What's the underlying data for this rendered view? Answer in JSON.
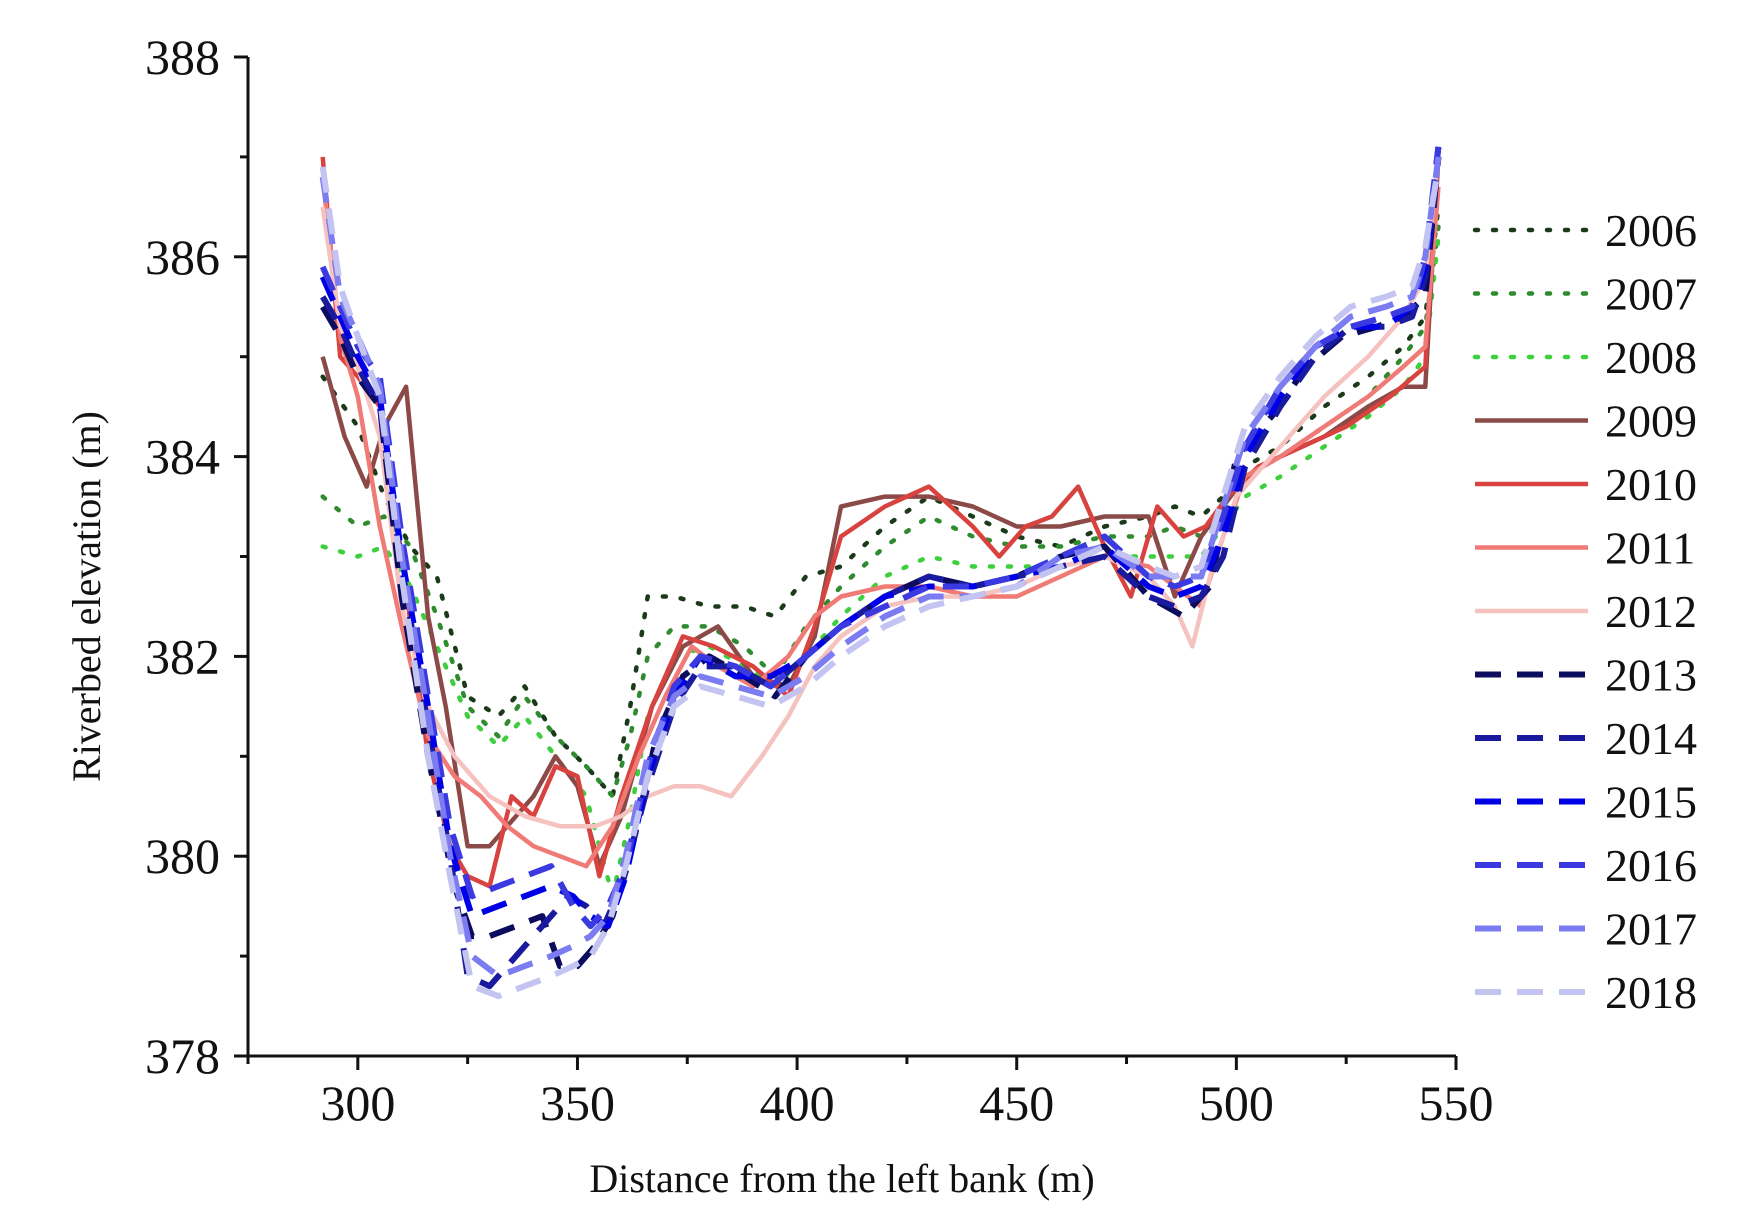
{
  "chart_data": {
    "type": "line",
    "xlabel": "Distance from the left bank (m)",
    "ylabel": "Riverbed elevation (m)",
    "xlim": [
      275,
      550
    ],
    "ylim": [
      378,
      388
    ],
    "xticks": [
      300,
      350,
      400,
      450,
      500,
      550
    ],
    "yticks": [
      378,
      380,
      382,
      384,
      386,
      388
    ],
    "grid": false,
    "legend_position": "right",
    "series": [
      {
        "name": "2006",
        "color": "#1a3a1a",
        "dash": "dot",
        "x": [
          292,
          300,
          306,
          312,
          318,
          325,
          332,
          338,
          345,
          352,
          358,
          362,
          366,
          372,
          380,
          388,
          395,
          402,
          410,
          420,
          430,
          440,
          450,
          460,
          470,
          480,
          486,
          492,
          497,
          502,
          510,
          520,
          530,
          538,
          543,
          546
        ],
        "y": [
          384.8,
          384.3,
          383.6,
          383.1,
          382.8,
          381.6,
          381.4,
          381.7,
          381.2,
          380.9,
          380.6,
          381.5,
          382.6,
          382.6,
          382.5,
          382.5,
          382.4,
          382.8,
          382.9,
          383.3,
          383.6,
          383.4,
          383.2,
          383.1,
          383.3,
          383.4,
          383.5,
          383.4,
          383.6,
          383.9,
          384.1,
          384.5,
          384.8,
          385.1,
          385.4,
          386.5
        ]
      },
      {
        "name": "2007",
        "color": "#2e8b2e",
        "dash": "dot",
        "x": [
          292,
          300,
          306,
          312,
          318,
          325,
          332,
          338,
          345,
          352,
          358,
          362,
          366,
          372,
          380,
          388,
          395,
          402,
          410,
          420,
          430,
          440,
          450,
          460,
          470,
          480,
          486,
          492,
          497,
          502,
          510,
          520,
          530,
          538,
          543,
          546
        ],
        "y": [
          383.6,
          383.3,
          383.4,
          383.1,
          382.4,
          381.5,
          381.2,
          381.6,
          381.2,
          380.9,
          380.6,
          381.2,
          382.0,
          382.3,
          382.3,
          382.1,
          381.8,
          382.3,
          382.7,
          383.1,
          383.4,
          383.2,
          383.1,
          383.1,
          383.2,
          383.2,
          383.3,
          383.2,
          383.5,
          383.8,
          384.0,
          384.3,
          384.6,
          385.0,
          385.3,
          386.3
        ]
      },
      {
        "name": "2008",
        "color": "#3ecf3e",
        "dash": "dot",
        "x": [
          292,
          300,
          306,
          312,
          318,
          325,
          332,
          338,
          345,
          352,
          358,
          362,
          366,
          372,
          380,
          388,
          395,
          402,
          410,
          420,
          430,
          440,
          450,
          460,
          470,
          480,
          486,
          492,
          497,
          502,
          510,
          520,
          530,
          538,
          543,
          546
        ],
        "y": [
          383.1,
          383.0,
          383.1,
          382.7,
          382.1,
          381.4,
          381.1,
          381.4,
          381.0,
          380.6,
          379.6,
          380.4,
          381.4,
          382.0,
          382.1,
          381.9,
          381.7,
          382.0,
          382.4,
          382.8,
          383.0,
          382.9,
          382.9,
          382.9,
          383.0,
          383.0,
          383.0,
          383.0,
          383.3,
          383.6,
          383.8,
          384.1,
          384.4,
          384.7,
          385.0,
          386.2
        ]
      },
      {
        "name": "2009",
        "color": "#8b4a47",
        "dash": "solid",
        "x": [
          292,
          297,
          302,
          306,
          311,
          316,
          320,
          325,
          330,
          336,
          340,
          345,
          350,
          355,
          360,
          367,
          374,
          382,
          390,
          398,
          404,
          410,
          420,
          430,
          440,
          450,
          460,
          470,
          480,
          486,
          492,
          497,
          502,
          510,
          520,
          530,
          538,
          543,
          546
        ],
        "y": [
          385.0,
          384.2,
          383.7,
          384.3,
          384.7,
          382.4,
          381.5,
          380.1,
          380.1,
          380.4,
          380.6,
          381.0,
          380.7,
          379.9,
          380.4,
          381.5,
          382.1,
          382.3,
          381.8,
          381.7,
          382.2,
          383.5,
          383.6,
          383.6,
          383.5,
          383.3,
          383.3,
          383.4,
          383.4,
          382.6,
          383.2,
          383.5,
          383.8,
          384.0,
          384.2,
          384.5,
          384.7,
          384.7,
          387.0
        ]
      },
      {
        "name": "2010",
        "color": "#d9433f",
        "dash": "solid",
        "x": [
          292,
          296,
          300,
          305,
          310,
          316,
          321,
          325,
          330,
          335,
          340,
          345,
          350,
          355,
          360,
          367,
          374,
          381,
          390,
          398,
          404,
          410,
          420,
          430,
          440,
          446,
          452,
          458,
          464,
          470,
          476,
          482,
          488,
          493,
          498,
          505,
          515,
          525,
          535,
          543,
          546
        ],
        "y": [
          387.0,
          385.0,
          384.8,
          384.5,
          383.0,
          381.0,
          380.1,
          379.8,
          379.7,
          380.6,
          380.4,
          380.9,
          380.8,
          379.8,
          380.6,
          381.5,
          382.2,
          382.1,
          381.9,
          381.6,
          382.3,
          383.2,
          383.5,
          383.7,
          383.3,
          383.0,
          383.3,
          383.4,
          383.7,
          383.1,
          382.6,
          383.5,
          383.2,
          383.3,
          383.6,
          383.9,
          384.1,
          384.3,
          384.6,
          384.9,
          387.1
        ]
      },
      {
        "name": "2011",
        "color": "#f07a76",
        "dash": "solid",
        "x": [
          292,
          296,
          300,
          305,
          310,
          316,
          322,
          328,
          334,
          340,
          346,
          352,
          358,
          364,
          370,
          376,
          382,
          390,
          398,
          404,
          410,
          420,
          430,
          440,
          450,
          460,
          470,
          480,
          486,
          492,
          497,
          502,
          510,
          520,
          530,
          538,
          543,
          546
        ],
        "y": [
          386.8,
          385.2,
          384.6,
          383.3,
          382.3,
          381.2,
          380.8,
          380.6,
          380.3,
          380.1,
          380.0,
          379.9,
          380.3,
          381.0,
          381.6,
          382.1,
          381.9,
          381.7,
          382.0,
          382.4,
          382.6,
          382.7,
          382.7,
          382.6,
          382.6,
          382.8,
          383.0,
          382.9,
          382.7,
          382.5,
          383.2,
          383.8,
          384.0,
          384.3,
          384.6,
          384.9,
          385.1,
          386.7
        ]
      },
      {
        "name": "2012",
        "color": "#f5c2c0",
        "dash": "solid",
        "x": [
          292,
          296,
          300,
          305,
          310,
          316,
          322,
          330,
          338,
          346,
          354,
          360,
          366,
          372,
          378,
          385,
          392,
          398,
          404,
          410,
          420,
          430,
          440,
          450,
          460,
          470,
          480,
          486,
          490,
          494,
          500,
          510,
          520,
          530,
          538,
          543,
          546
        ],
        "y": [
          386.5,
          385.3,
          384.9,
          384.2,
          382.5,
          381.5,
          381.0,
          380.6,
          380.4,
          380.3,
          380.3,
          380.4,
          380.6,
          380.7,
          380.7,
          380.6,
          381.0,
          381.4,
          381.9,
          382.2,
          382.5,
          382.6,
          382.6,
          382.7,
          382.9,
          383.0,
          382.8,
          382.5,
          382.1,
          382.8,
          383.6,
          384.1,
          384.6,
          385.0,
          385.4,
          385.8,
          387.0
        ]
      },
      {
        "name": "2013",
        "color": "#0c0c5e",
        "dash": "dash",
        "x": [
          292,
          296,
          300,
          305,
          310,
          316,
          322,
          326,
          330,
          336,
          342,
          346,
          350,
          354,
          358,
          362,
          368,
          374,
          380,
          388,
          395,
          402,
          410,
          420,
          430,
          440,
          450,
          460,
          470,
          480,
          488,
          494,
          500,
          508,
          516,
          524,
          532,
          538,
          543,
          546
        ],
        "y": [
          385.5,
          385.2,
          384.8,
          384.5,
          382.6,
          381.0,
          379.7,
          379.2,
          379.2,
          379.3,
          379.4,
          378.9,
          378.9,
          379.1,
          379.4,
          380.0,
          381.2,
          381.8,
          382.0,
          381.8,
          381.6,
          382.0,
          382.3,
          382.6,
          382.8,
          382.7,
          382.8,
          383.0,
          383.1,
          382.6,
          382.4,
          382.7,
          384.0,
          384.4,
          384.9,
          385.2,
          385.3,
          385.4,
          385.6,
          387.0
        ]
      },
      {
        "name": "2014",
        "color": "#1a1a9e",
        "dash": "dash",
        "x": [
          292,
          296,
          300,
          305,
          310,
          316,
          321,
          325,
          330,
          336,
          342,
          348,
          352,
          356,
          360,
          366,
          372,
          378,
          386,
          394,
          402,
          410,
          420,
          430,
          440,
          450,
          460,
          470,
          480,
          486,
          492,
          497,
          502,
          510,
          518,
          526,
          534,
          540,
          543,
          546
        ],
        "y": [
          385.6,
          385.3,
          384.9,
          384.5,
          382.9,
          381.3,
          380.0,
          378.8,
          378.7,
          379.0,
          379.3,
          379.6,
          379.5,
          379.3,
          379.7,
          380.7,
          381.5,
          381.9,
          381.9,
          381.7,
          382.0,
          382.3,
          382.6,
          382.8,
          382.7,
          382.8,
          382.9,
          383.0,
          382.6,
          382.5,
          382.6,
          383.0,
          383.9,
          384.5,
          385.0,
          385.3,
          385.3,
          385.4,
          385.8,
          387.0
        ]
      },
      {
        "name": "2015",
        "color": "#0000e6",
        "dash": "dash",
        "x": [
          292,
          296,
          300,
          305,
          310,
          316,
          321,
          326,
          332,
          338,
          344,
          349,
          353,
          357,
          361,
          366,
          372,
          378,
          386,
          394,
          402,
          410,
          420,
          430,
          440,
          450,
          460,
          470,
          480,
          486,
          492,
          497,
          502,
          510,
          518,
          526,
          534,
          540,
          543,
          546
        ],
        "y": [
          385.8,
          385.4,
          385.0,
          384.6,
          383.0,
          381.5,
          380.1,
          379.4,
          379.5,
          379.6,
          379.7,
          379.6,
          379.4,
          379.3,
          379.8,
          380.8,
          381.6,
          382.0,
          381.8,
          381.8,
          382.0,
          382.3,
          382.6,
          382.7,
          382.7,
          382.8,
          382.9,
          383.1,
          382.7,
          382.6,
          382.7,
          383.2,
          384.0,
          384.6,
          385.1,
          385.3,
          385.3,
          385.5,
          385.9,
          387.1
        ]
      },
      {
        "name": "2016",
        "color": "#3a3ae0",
        "dash": "dash",
        "x": [
          292,
          296,
          300,
          305,
          310,
          316,
          321,
          326,
          332,
          338,
          344,
          349,
          353,
          357,
          361,
          366,
          372,
          378,
          386,
          394,
          402,
          410,
          420,
          430,
          440,
          450,
          460,
          470,
          480,
          486,
          492,
          497,
          502,
          510,
          518,
          526,
          534,
          540,
          543,
          546
        ],
        "y": [
          385.9,
          385.5,
          385.1,
          384.8,
          383.2,
          381.6,
          380.3,
          379.6,
          379.7,
          379.8,
          379.9,
          379.5,
          379.3,
          379.5,
          379.9,
          380.9,
          381.7,
          382.0,
          381.9,
          381.7,
          382.0,
          382.3,
          382.5,
          382.7,
          382.7,
          382.8,
          383.0,
          383.2,
          382.8,
          382.7,
          382.8,
          383.4,
          384.1,
          384.7,
          385.1,
          385.3,
          385.4,
          385.5,
          386.0,
          387.1
        ]
      },
      {
        "name": "2017",
        "color": "#7b7bf2",
        "dash": "dash",
        "x": [
          292,
          296,
          300,
          305,
          310,
          316,
          321,
          326,
          332,
          338,
          344,
          349,
          353,
          357,
          361,
          366,
          372,
          378,
          386,
          394,
          402,
          410,
          420,
          430,
          440,
          450,
          460,
          470,
          480,
          486,
          492,
          497,
          502,
          510,
          518,
          526,
          534,
          540,
          543,
          546
        ],
        "y": [
          386.8,
          385.6,
          385.2,
          384.7,
          383.0,
          381.4,
          380.0,
          379.0,
          378.8,
          378.9,
          379.0,
          379.1,
          379.2,
          379.4,
          380.0,
          381.0,
          381.6,
          381.8,
          381.7,
          381.6,
          381.8,
          382.1,
          382.4,
          382.6,
          382.6,
          382.7,
          383.0,
          383.1,
          382.8,
          382.8,
          382.8,
          383.5,
          384.2,
          384.7,
          385.1,
          385.4,
          385.5,
          385.6,
          386.0,
          387.0
        ]
      },
      {
        "name": "2018",
        "color": "#c4c4f3",
        "dash": "dash",
        "x": [
          292,
          296,
          300,
          305,
          310,
          316,
          321,
          326,
          332,
          338,
          344,
          349,
          353,
          357,
          361,
          366,
          372,
          378,
          386,
          394,
          402,
          410,
          420,
          430,
          440,
          450,
          460,
          470,
          480,
          486,
          492,
          497,
          502,
          510,
          518,
          526,
          534,
          540,
          543,
          546
        ],
        "y": [
          386.9,
          385.7,
          385.2,
          384.6,
          382.8,
          381.0,
          379.8,
          378.7,
          378.6,
          378.7,
          378.8,
          378.9,
          379.0,
          379.3,
          379.9,
          380.8,
          381.5,
          381.7,
          381.6,
          381.5,
          381.7,
          382.0,
          382.3,
          382.5,
          382.6,
          382.7,
          382.9,
          383.1,
          382.9,
          382.8,
          382.9,
          383.6,
          384.3,
          384.8,
          385.2,
          385.5,
          385.6,
          385.7,
          386.1,
          386.9
        ]
      }
    ]
  }
}
